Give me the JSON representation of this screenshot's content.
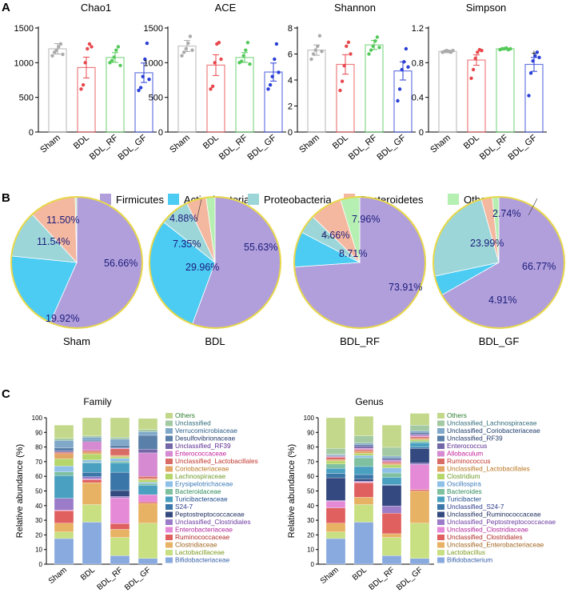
{
  "panel_labels": {
    "a": "A",
    "b": "B",
    "c": "C"
  },
  "chart_data": [
    {
      "type": "bar",
      "title": "Chao1",
      "categories": [
        "Sham",
        "BDL",
        "BDL_RF",
        "BDL_GF"
      ],
      "colors": [
        "#aaaaaa",
        "#e8474c",
        "#54c95a",
        "#2a3fd6"
      ],
      "values": [
        1200,
        930,
        1075,
        855
      ],
      "errors": [
        75,
        150,
        70,
        140
      ],
      "ylim": [
        0,
        1500
      ],
      "yticks": [
        0,
        500,
        1000,
        1500
      ],
      "ytick_labels": [
        "0",
        "500",
        "1000",
        "1500"
      ],
      "points": [
        [
          1100,
          1150,
          1180,
          1230,
          1270,
          1120
        ],
        [
          620,
          680,
          1000,
          1200,
          1270,
          1230
        ],
        [
          1000,
          1030,
          1080,
          1180,
          1230,
          960
        ],
        [
          600,
          640,
          800,
          1050,
          1280,
          760
        ]
      ],
      "marker": "none"
    },
    {
      "type": "bar",
      "title": "ACE",
      "categories": [
        "Sham",
        "BDL",
        "BDL_RF",
        "BDL_GF"
      ],
      "colors": [
        "#aaaaaa",
        "#e8474c",
        "#54c95a",
        "#2a3fd6"
      ],
      "values": [
        1240,
        965,
        1075,
        865
      ],
      "errors": [
        80,
        150,
        70,
        130
      ],
      "ylim": [
        0,
        1500
      ],
      "yticks": [
        0,
        500,
        1000,
        1500
      ],
      "ytick_labels": [
        "0",
        "500",
        "1000",
        "1500"
      ],
      "points": [
        [
          1100,
          1150,
          1200,
          1280,
          1380,
          1180
        ],
        [
          620,
          660,
          1000,
          1270,
          1290,
          1050
        ],
        [
          1000,
          1020,
          1100,
          1180,
          1290,
          980
        ],
        [
          620,
          680,
          800,
          1050,
          1270,
          860
        ]
      ],
      "marker": "none"
    },
    {
      "type": "bar",
      "title": "Shannon",
      "categories": [
        "Sham",
        "BDL",
        "BDL_RF",
        "BDL_GF"
      ],
      "colors": [
        "#aaaaaa",
        "#e8474c",
        "#54c95a",
        "#2a3fd6"
      ],
      "values": [
        6.3,
        5.2,
        6.7,
        4.7
      ],
      "errors": [
        0.4,
        0.75,
        0.35,
        0.7
      ],
      "ylim": [
        0,
        8
      ],
      "yticks": [
        0,
        2,
        4,
        6,
        8
      ],
      "ytick_labels": [
        "0",
        "2",
        "4",
        "6",
        "8"
      ],
      "points": [
        [
          5.6,
          6.0,
          6.3,
          6.6,
          7.4,
          6.2
        ],
        [
          3.2,
          3.9,
          5.1,
          6.6,
          6.9,
          6.0
        ],
        [
          6.0,
          6.3,
          6.6,
          7.0,
          7.3,
          6.5
        ],
        [
          2.4,
          3.3,
          4.8,
          5.4,
          6.4,
          5.0
        ]
      ],
      "marker": "none"
    },
    {
      "type": "bar",
      "title": "Simpson",
      "categories": [
        "Sham",
        "BDL",
        "BDL_RF",
        "BDL_GF"
      ],
      "colors": [
        "#aaaaaa",
        "#e8474c",
        "#54c95a",
        "#2a3fd6"
      ],
      "values": [
        0.93,
        0.83,
        0.96,
        0.78
      ],
      "errors": [
        0.015,
        0.06,
        0.01,
        0.08
      ],
      "ylim": [
        0,
        1.2
      ],
      "yticks": [
        0,
        0.4,
        0.8,
        1.2
      ],
      "ytick_labels": [
        "0",
        "0.4",
        "0.8",
        "1.2"
      ],
      "points": [
        [
          0.92,
          0.93,
          0.94,
          0.93,
          0.92,
          0.94
        ],
        [
          0.62,
          0.72,
          0.85,
          0.92,
          0.95,
          0.94
        ],
        [
          0.95,
          0.96,
          0.96,
          0.97,
          0.95,
          0.96
        ],
        [
          0.42,
          0.68,
          0.82,
          0.88,
          0.92,
          0.86
        ]
      ],
      "marker": "+"
    },
    {
      "type": "pie",
      "title": "Sham",
      "legend": [
        "Firmicutes",
        "Actinobacteria",
        "Proteobacteria",
        "Bacteroidetes",
        "Others"
      ],
      "colors": [
        "#b19fdc",
        "#4ccbf3",
        "#9dd6d9",
        "#f4b8a0",
        "#b5efb1"
      ],
      "values": [
        56.66,
        19.92,
        11.54,
        11.5,
        0.38
      ],
      "labels": [
        "56.66%",
        "19.92%",
        "11.54%",
        "11.50%",
        ""
      ]
    },
    {
      "type": "pie",
      "title": "BDL",
      "values": [
        55.63,
        29.96,
        7.35,
        4.88,
        2.18
      ],
      "labels": [
        "55.63%",
        "29.96%",
        "7.35%",
        "4.88%",
        ""
      ]
    },
    {
      "type": "pie",
      "title": "BDL_RF",
      "values": [
        73.91,
        8.71,
        4.66,
        7.96,
        4.76
      ],
      "labels": [
        "73.91%",
        "8.71%",
        "4.66%",
        "7.96%",
        ""
      ]
    },
    {
      "type": "pie",
      "title": "BDL_GF",
      "values": [
        66.77,
        4.91,
        23.99,
        2.74,
        1.59
      ],
      "labels": [
        "66.77%",
        "4.91%",
        "23.99%",
        "2.74%",
        ""
      ]
    },
    {
      "type": "bar",
      "stacked": true,
      "title": "Family",
      "ylabel": "Relative abundance (%)",
      "categories": [
        "Sham",
        "BDL",
        "BDL_RF",
        "BDL_GF"
      ],
      "ylim": [
        0,
        100
      ],
      "yticks": [
        0,
        10,
        20,
        30,
        40,
        50,
        60,
        70,
        80,
        90,
        100
      ],
      "ytick_labels": [
        "0",
        "10",
        "20",
        "30",
        "40",
        "50",
        "60",
        "70",
        "80",
        "90",
        "100"
      ],
      "legend": [
        "Others",
        "Unclassified",
        "Verrucomicrobiaceae",
        "Desulfovibrionaceae",
        "Unclassified_RF39",
        "Enterococcaceae",
        "Unclassified_Lactobacillales",
        "Coriobacteriaceae",
        "Lachnospiraceae",
        "Erysipelotrichaceae",
        "Bacteroidaceae",
        "Turicibacteraceae",
        "S24-7",
        "Peptostreptococcaceae",
        "Unclassified_Clostridiales",
        "Enterobacteriaceae",
        "Ruminococcaceae",
        "Clostridiaceae",
        "Lactobacillaceae",
        "Bifidobacteriaceae"
      ],
      "legend_colors": [
        "#2e7d2e",
        "#2f6b7a",
        "#2b5e8a",
        "#22386b",
        "#5c2d91",
        "#c31c9a",
        "#c0342b",
        "#b8731e",
        "#6e9a2a",
        "#3a7ab8",
        "#2e8a5c",
        "#1a4a8c",
        "#2d3c8c",
        "#1a2a5c",
        "#6a3aa0",
        "#b0289a",
        "#b02a2a",
        "#a0641e",
        "#7a9a1e",
        "#3560a8"
      ],
      "colors": [
        "#c3d88a",
        "#a3c9a2",
        "#7fa8c9",
        "#5a7fa8",
        "#7467a8",
        "#d68ad1",
        "#d96b67",
        "#e3a667",
        "#b5d66a",
        "#8ec0e8",
        "#7fc0a0",
        "#4aa0c0",
        "#3a76a8",
        "#34497f",
        "#9a7cc9",
        "#e58ad6",
        "#e06060",
        "#e8b264",
        "#c8e082",
        "#88aadf"
      ],
      "series": [
        {
          "name": "Bifidobacteriaceae",
          "values": [
            17.5,
            28.7,
            5.8,
            4.0
          ]
        },
        {
          "name": "Lactobacillaceae",
          "values": [
            4.5,
            12.0,
            12.5,
            24.0
          ]
        },
        {
          "name": "Clostridiaceae",
          "values": [
            6.0,
            15.0,
            5.5,
            13.5
          ]
        },
        {
          "name": "Ruminococcaceae",
          "values": [
            8.5,
            2.0,
            4.0,
            1.0
          ]
        },
        {
          "name": "Enterobacteriaceae",
          "values": [
            0.5,
            0.5,
            17.5,
            5.0
          ]
        },
        {
          "name": "Unclassified_Clostridiales",
          "values": [
            8.0,
            1.5,
            1.0,
            0.0
          ]
        },
        {
          "name": "Peptostreptococcaceae",
          "values": [
            0.0,
            0.0,
            4.0,
            0.0
          ]
        },
        {
          "name": "S24-7",
          "values": [
            0.0,
            3.0,
            12.5,
            0.0
          ]
        },
        {
          "name": "Turicibacteraceae",
          "values": [
            15.5,
            6.5,
            6.5,
            6.5
          ]
        },
        {
          "name": "Bacteroidaceae",
          "values": [
            2.5,
            0.5,
            1.0,
            1.0
          ]
        },
        {
          "name": "Erysipelotrichaceae",
          "values": [
            4.0,
            1.5,
            2.0,
            1.0
          ]
        },
        {
          "name": "Lachnospiraceae",
          "values": [
            5.0,
            4.0,
            1.0,
            1.5
          ]
        },
        {
          "name": "Coriobacteriaceae",
          "values": [
            3.5,
            1.5,
            1.0,
            1.0
          ]
        },
        {
          "name": "Unclassified_Lactobacillales",
          "values": [
            1.0,
            1.0,
            4.5,
            1.5
          ]
        },
        {
          "name": "Enterococcaceae",
          "values": [
            0.0,
            6.0,
            0.5,
            16.0
          ]
        },
        {
          "name": "Unclassified_RF39",
          "values": [
            1.0,
            0.0,
            0.0,
            2.5
          ]
        },
        {
          "name": "Desulfovibrionaceae",
          "values": [
            2.0,
            1.0,
            2.0,
            9.5
          ]
        },
        {
          "name": "Verrucomicrobiaceae",
          "values": [
            5.0,
            2.0,
            4.0,
            2.5
          ]
        },
        {
          "name": "Unclassified",
          "values": [
            1.5,
            1.0,
            1.5,
            1.5
          ]
        },
        {
          "name": "Others",
          "values": [
            9.0,
            12.3,
            13.2,
            7.5
          ]
        }
      ]
    },
    {
      "type": "bar",
      "stacked": true,
      "title": "Genus",
      "ylabel": "Relative abundance (%)",
      "categories": [
        "Sham",
        "BDL",
        "BDL_RF",
        "BDL_GF"
      ],
      "ylim": [
        0,
        100
      ],
      "yticks": [
        0,
        10,
        20,
        30,
        40,
        50,
        60,
        70,
        80,
        90,
        100
      ],
      "ytick_labels": [
        "0",
        "10",
        "20",
        "30",
        "40",
        "50",
        "60",
        "70",
        "80",
        "90",
        "100"
      ],
      "legend": [
        "Others",
        "Unclassified_Lachnospiraceae",
        "Unclassified_Coriobacteriaceae",
        "Unclassified_RF39",
        "Enterococcus",
        "Allobaculum",
        "Ruminococcus",
        "Unclassified_Lactobacillales",
        "Clostridium",
        "Oscillospira",
        "Bacteroides",
        "Turicibacter",
        "Unclassified_S24-7",
        "Unclassified_Ruminococcaceae",
        "Unclassified_Peptostreptococcaceae",
        "Unclassified_Clostridiaceae",
        "Unclassified_Clostridiales",
        "Unclassified_Enterobacteriaceae",
        "Lactobacillus",
        "Bifidobacterium"
      ],
      "legend_colors": [
        "#2e7d2e",
        "#2f6b7a",
        "#1a3a6c",
        "#22386b",
        "#5c2d91",
        "#c31c9a",
        "#c0342b",
        "#b8731e",
        "#6e9a2a",
        "#3a7ab8",
        "#2e8a5c",
        "#1a4a8c",
        "#2d3c8c",
        "#1a2a5c",
        "#6a3aa0",
        "#b0289a",
        "#b02a2a",
        "#a0641e",
        "#7a9a1e",
        "#3560a8"
      ],
      "colors": [
        "#c3d88a",
        "#a3c9a2",
        "#7fa8c9",
        "#5a7fa8",
        "#7467a8",
        "#d68ad1",
        "#d96b67",
        "#e3a667",
        "#b5d66a",
        "#8ec0e8",
        "#7fc0a0",
        "#4aa0c0",
        "#3a76a8",
        "#34497f",
        "#9a7cc9",
        "#e58ad6",
        "#e06060",
        "#e8b264",
        "#c8e082",
        "#88aadf"
      ],
      "series": [
        {
          "name": "Bifidobacterium",
          "values": [
            17.5,
            28.7,
            5.8,
            4.0
          ]
        },
        {
          "name": "Lactobacillus",
          "values": [
            4.5,
            12.0,
            12.5,
            24.0
          ]
        },
        {
          "name": "Unclassified_Enterobacteriaceae",
          "values": [
            6.0,
            5.0,
            2.5,
            22.0
          ]
        },
        {
          "name": "Unclassified_Clostridiales",
          "values": [
            10.5,
            10.0,
            14.0,
            1.0
          ]
        },
        {
          "name": "Unclassified_Clostridiaceae",
          "values": [
            4.5,
            0.5,
            0.0,
            17.0
          ]
        },
        {
          "name": "Unclassified_Peptostreptococcaceae",
          "values": [
            0.5,
            0.5,
            5.0,
            1.0
          ]
        },
        {
          "name": "Unclassified_Ruminococcaceae",
          "values": [
            15.5,
            1.5,
            14.0,
            10.0
          ]
        },
        {
          "name": "Unclassified_S24-7",
          "values": [
            3.0,
            3.0,
            0.5,
            1.0
          ]
        },
        {
          "name": "Turicibacter",
          "values": [
            3.5,
            5.5,
            5.0,
            3.0
          ]
        },
        {
          "name": "Bacteroides",
          "values": [
            3.0,
            6.0,
            3.0,
            1.0
          ]
        },
        {
          "name": "Oscillospira",
          "values": [
            0.0,
            1.5,
            3.5,
            0.0
          ]
        },
        {
          "name": "Clostridium",
          "values": [
            2.0,
            1.5,
            2.0,
            1.0
          ]
        },
        {
          "name": "Unclassified_Lactobacillales",
          "values": [
            1.0,
            1.5,
            1.0,
            1.0
          ]
        },
        {
          "name": "Ruminococcus",
          "values": [
            1.5,
            1.0,
            1.0,
            1.0
          ]
        },
        {
          "name": "Allobaculum",
          "values": [
            0.5,
            1.0,
            1.0,
            1.0
          ]
        },
        {
          "name": "Enterococcus",
          "values": [
            0.5,
            1.5,
            1.0,
            1.0
          ]
        },
        {
          "name": "Unclassified_RF39",
          "values": [
            0.5,
            1.0,
            1.0,
            1.0
          ]
        },
        {
          "name": "Unclassified_Coriobacteriaceae",
          "values": [
            0.5,
            1.0,
            1.0,
            1.0
          ]
        },
        {
          "name": "Unclassified_Lachnospiraceae",
          "values": [
            4.0,
            5.0,
            6.0,
            4.0
          ]
        },
        {
          "name": "Others",
          "values": [
            21.0,
            13.3,
            15.2,
            8.0
          ]
        }
      ]
    }
  ]
}
